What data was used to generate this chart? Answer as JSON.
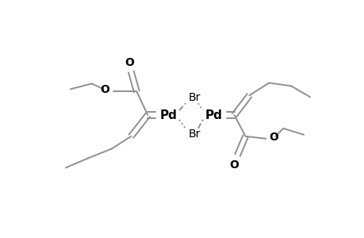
{
  "bg_color": "#ffffff",
  "line_color": "#909090",
  "text_color": "#000000",
  "lw": 1.4,
  "figsize": [
    4.6,
    3.0
  ],
  "dpi": 100,
  "xlim": [
    0,
    460
  ],
  "ylim": [
    0,
    300
  ]
}
